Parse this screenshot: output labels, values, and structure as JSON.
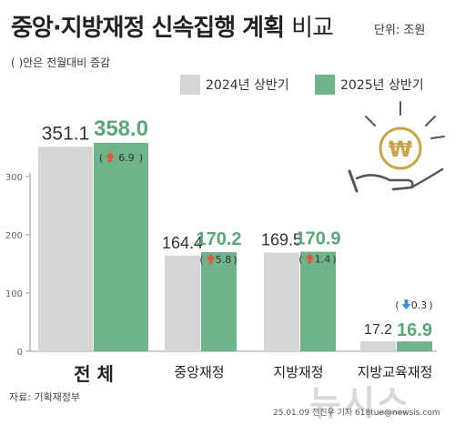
{
  "header": {
    "title_bold": "중앙·지방재정 신속집행 계획",
    "title_light": "비교",
    "unit": "단위: 조원",
    "note": "( )안은 전월대비 증감"
  },
  "footer": {
    "source": "자료: 기획재정부",
    "credit": "25.01.09 전진우 기자 618tue@newsis.com",
    "watermark": "뉴시스"
  },
  "colors": {
    "series_2024": "#d4d6d4",
    "series_2025": "#6fb38a",
    "label_2025": "#5aa77a",
    "up_arrow": "#e2553f",
    "down_arrow": "#3a8fd8",
    "icon": "#c9a44a"
  },
  "icon": {
    "name": "hand-holding-won-coin-icon",
    "glyph": "₩"
  },
  "chart_data": {
    "type": "bar",
    "categories": [
      "전 체",
      "중앙재정",
      "지방재정",
      "지방교육재정"
    ],
    "series": [
      {
        "name": "2024년 상반기",
        "values": [
          351.1,
          164.4,
          169.5,
          17.2
        ]
      },
      {
        "name": "2025년 상반기",
        "values": [
          358.0,
          170.2,
          170.9,
          16.9
        ]
      }
    ],
    "changes": [
      {
        "direction": "up",
        "value": "6.9"
      },
      {
        "direction": "up",
        "value": "5.8"
      },
      {
        "direction": "up",
        "value": "1.4"
      },
      {
        "direction": "down",
        "value": "0.3"
      }
    ],
    "yticks": [
      0,
      100,
      200,
      300
    ],
    "ylim": [
      0,
      400
    ],
    "grid": false,
    "legend": "top-right"
  }
}
